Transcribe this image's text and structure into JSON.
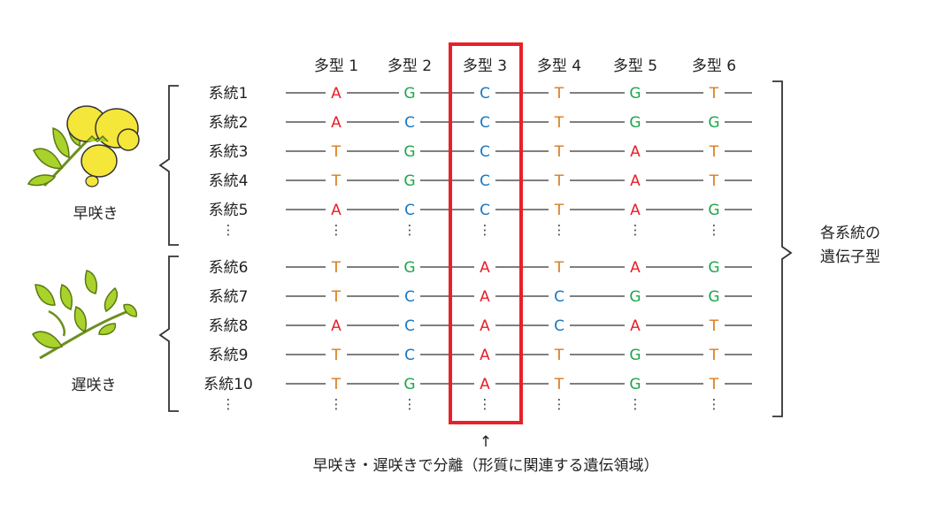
{
  "colors": {
    "A": "#e8202a",
    "C": "#1a78c2",
    "G": "#1ea64b",
    "T": "#d97b1e",
    "highlight": "#e8202a",
    "line": "#555555",
    "flower_yellow": "#f5e63a",
    "leaf_green": "#a9d22c"
  },
  "markers": [
    "多型 1",
    "多型 2",
    "多型 3",
    "多型 4",
    "多型 5",
    "多型 6"
  ],
  "groups": [
    {
      "label": "早咲き",
      "lines": [
        {
          "name": "系統1",
          "bases": [
            "A",
            "G",
            "C",
            "T",
            "G",
            "T"
          ]
        },
        {
          "name": "系統2",
          "bases": [
            "A",
            "C",
            "C",
            "T",
            "G",
            "G"
          ]
        },
        {
          "name": "系統3",
          "bases": [
            "T",
            "G",
            "C",
            "T",
            "A",
            "T"
          ]
        },
        {
          "name": "系統4",
          "bases": [
            "T",
            "G",
            "C",
            "T",
            "A",
            "T"
          ]
        },
        {
          "name": "系統5",
          "bases": [
            "A",
            "C",
            "C",
            "T",
            "A",
            "G"
          ]
        }
      ]
    },
    {
      "label": "遅咲き",
      "lines": [
        {
          "name": "系統6",
          "bases": [
            "T",
            "G",
            "A",
            "T",
            "A",
            "G"
          ]
        },
        {
          "name": "系統7",
          "bases": [
            "T",
            "C",
            "A",
            "C",
            "G",
            "G"
          ]
        },
        {
          "name": "系統8",
          "bases": [
            "A",
            "C",
            "A",
            "C",
            "A",
            "T"
          ]
        },
        {
          "name": "系統9",
          "bases": [
            "T",
            "C",
            "A",
            "T",
            "G",
            "T"
          ]
        },
        {
          "name": "系統10",
          "bases": [
            "T",
            "G",
            "A",
            "T",
            "G",
            "T"
          ]
        }
      ]
    }
  ],
  "ellipsis": "⋮",
  "right_label": [
    "各系統の",
    "遺伝子型"
  ],
  "arrow": "↑",
  "caption": "早咲き・遅咲きで分離（形質に関連する遺伝領域）",
  "highlight_marker": "多型 3"
}
